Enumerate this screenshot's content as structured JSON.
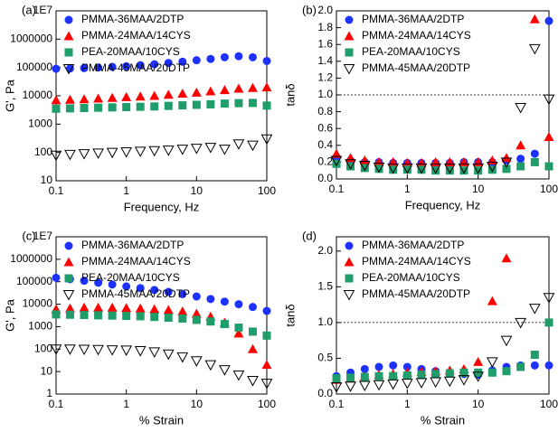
{
  "chart_data": [
    {
      "type": "scatter",
      "label": "(a)",
      "x_label": "Frequency, Hz",
      "y_label": "G', Pa",
      "xscale": "log",
      "yscale": "log",
      "xlim": [
        0.1,
        100
      ],
      "xticks": [
        0.1,
        1,
        10,
        100
      ],
      "ylim": [
        10,
        10000000
      ],
      "yticks": [
        10,
        100,
        1000,
        10000,
        100000,
        1000000,
        {
          "value": 10000000,
          "label": "1E7"
        }
      ],
      "legend": "upper left",
      "x": [
        0.1,
        0.158,
        0.251,
        0.398,
        0.631,
        1,
        1.585,
        2.512,
        3.981,
        6.31,
        10,
        15.85,
        25.12,
        39.81,
        63.1,
        100
      ],
      "series": [
        {
          "name": "PMMA-36MAA/2DTP",
          "color": "#1e32ff",
          "marker": "circle",
          "values": [
            90000,
            92000,
            95000,
            100000,
            105000,
            110000,
            120000,
            130000,
            145000,
            160000,
            180000,
            200000,
            230000,
            250000,
            230000,
            170000
          ]
        },
        {
          "name": "PMMA-24MAA/14CYS",
          "color": "#ff0000",
          "marker": "triangle-up",
          "values": [
            7000,
            7300,
            7600,
            8000,
            8500,
            9000,
            9500,
            10000,
            11000,
            12000,
            13000,
            14500,
            16000,
            18000,
            19000,
            20000
          ]
        },
        {
          "name": "PEA-20MAA/10CYS",
          "color": "#1f9d6a",
          "marker": "square",
          "values": [
            3500,
            3600,
            3700,
            3800,
            3900,
            4000,
            4100,
            4200,
            4400,
            4600,
            4800,
            5000,
            5300,
            5500,
            5600,
            4500
          ]
        },
        {
          "name": "PMMA-45MAA/20DTP",
          "color": "#000000",
          "marker": "open-triangle-down",
          "values": [
            80,
            85,
            90,
            95,
            100,
            105,
            110,
            115,
            120,
            130,
            140,
            150,
            130,
            200,
            180,
            300
          ]
        }
      ]
    },
    {
      "type": "scatter",
      "label": "(b)",
      "x_label": "Frequency, Hz",
      "y_label": "tanδ",
      "xscale": "log",
      "yscale": "linear",
      "xlim": [
        0.1,
        100
      ],
      "xticks": [
        0.1,
        1,
        10,
        100
      ],
      "ylim": [
        0,
        2
      ],
      "yticks": [
        {
          "value": 0,
          "label": "0.0"
        },
        0.2,
        0.4,
        0.6,
        0.8,
        {
          "value": 1,
          "label": "1.0"
        },
        1.2,
        1.4,
        1.6,
        1.8,
        {
          "value": 2,
          "label": "2.0"
        }
      ],
      "reference_line": 1,
      "legend": "upper left",
      "x": [
        0.1,
        0.158,
        0.251,
        0.398,
        0.631,
        1,
        1.585,
        2.512,
        3.981,
        6.31,
        10,
        15.85,
        25.12,
        39.81,
        63.1,
        100
      ],
      "series": [
        {
          "name": "PMMA-36MAA/2DTP",
          "color": "#1e32ff",
          "marker": "circle",
          "values": [
            0.25,
            0.22,
            0.2,
            0.2,
            0.19,
            0.19,
            0.19,
            0.19,
            0.19,
            0.2,
            0.2,
            0.2,
            0.22,
            0.24,
            0.3,
            1.88
          ]
        },
        {
          "name": "PMMA-24MAA/14CYS",
          "color": "#ff0000",
          "marker": "triangle-up",
          "values": [
            0.3,
            0.25,
            0.22,
            0.2,
            0.2,
            0.19,
            0.19,
            0.2,
            0.2,
            0.2,
            0.2,
            0.22,
            0.25,
            0.4,
            1.9,
            0.5
          ]
        },
        {
          "name": "PEA-20MAA/10CYS",
          "color": "#1f9d6a",
          "marker": "square",
          "values": [
            0.18,
            0.15,
            0.13,
            0.12,
            0.11,
            0.11,
            0.11,
            0.1,
            0.1,
            0.1,
            0.1,
            0.11,
            0.12,
            0.15,
            0.2,
            0.15
          ]
        },
        {
          "name": "PMMA-45MAA/20DTP",
          "color": "#000000",
          "marker": "open-triangle-down",
          "values": [
            0.22,
            0.18,
            0.16,
            0.14,
            0.13,
            0.13,
            0.13,
            0.13,
            0.13,
            0.13,
            0.13,
            0.15,
            0.2,
            0.85,
            1.55,
            0.95
          ]
        }
      ]
    },
    {
      "type": "scatter",
      "label": "(c)",
      "x_label": "% Strain",
      "y_label": "G', Pa",
      "xscale": "log",
      "yscale": "log",
      "xlim": [
        0.1,
        100
      ],
      "xticks": [
        0.1,
        1,
        10,
        100
      ],
      "ylim": [
        1,
        10000000
      ],
      "yticks": [
        1,
        10,
        100,
        1000,
        10000,
        100000,
        1000000,
        {
          "value": 10000000,
          "label": "1E7"
        }
      ],
      "legend": "upper left",
      "x": [
        0.1,
        0.158,
        0.251,
        0.398,
        0.631,
        1,
        1.585,
        2.512,
        3.981,
        6.31,
        10,
        15.85,
        25.12,
        39.81,
        63.1,
        100
      ],
      "series": [
        {
          "name": "PMMA-36MAA/2DTP",
          "color": "#1e32ff",
          "marker": "circle",
          "values": [
            150000,
            130000,
            110000,
            90000,
            75000,
            62000,
            52000,
            43000,
            35000,
            28000,
            22000,
            17000,
            13000,
            10000,
            7500,
            5000
          ]
        },
        {
          "name": "PMMA-24MAA/14CYS",
          "color": "#ff0000",
          "marker": "triangle-up",
          "values": [
            6000,
            6500,
            7000,
            7000,
            7000,
            6800,
            6500,
            6000,
            5500,
            4800,
            3800,
            2800,
            1500,
            500,
            100,
            20
          ]
        },
        {
          "name": "PEA-20MAA/10CYS",
          "color": "#1f9d6a",
          "marker": "square",
          "values": [
            3500,
            3400,
            3300,
            3200,
            3100,
            3000,
            2900,
            2700,
            2500,
            2300,
            2000,
            1700,
            1300,
            900,
            600,
            400
          ]
        },
        {
          "name": "PMMA-45MAA/20DTP",
          "color": "#000000",
          "marker": "open-triangle-down",
          "values": [
            100,
            100,
            98,
            96,
            93,
            90,
            85,
            75,
            60,
            45,
            30,
            20,
            12,
            7,
            4,
            3
          ]
        }
      ]
    },
    {
      "type": "scatter",
      "label": "(d)",
      "x_label": "% Strain",
      "y_label": "tanδ",
      "xscale": "log",
      "yscale": "linear",
      "xlim": [
        0.1,
        100
      ],
      "xticks": [
        0.1,
        1,
        10,
        100
      ],
      "ylim": [
        0,
        2.2
      ],
      "yticks": [
        {
          "value": 0,
          "label": "0.0"
        },
        0.5,
        {
          "value": 1,
          "label": "1.0"
        },
        1.5,
        {
          "value": 2,
          "label": "2.0"
        }
      ],
      "reference_line": 1,
      "legend": "upper left",
      "x": [
        0.1,
        0.158,
        0.251,
        0.398,
        0.631,
        1,
        1.585,
        2.512,
        3.981,
        6.31,
        10,
        15.85,
        25.12,
        39.81,
        63.1,
        100
      ],
      "series": [
        {
          "name": "PMMA-36MAA/2DTP",
          "color": "#1e32ff",
          "marker": "circle",
          "values": [
            0.25,
            0.3,
            0.35,
            0.38,
            0.4,
            0.38,
            0.35,
            0.32,
            0.3,
            0.28,
            0.27,
            0.33,
            0.38,
            0.4,
            0.4,
            0.4
          ]
        },
        {
          "name": "PMMA-24MAA/14CYS",
          "color": "#ff0000",
          "marker": "triangle-up",
          "values": [
            0.2,
            0.22,
            0.25,
            0.27,
            0.28,
            0.3,
            0.31,
            0.32,
            0.33,
            0.35,
            0.45,
            1.3,
            1.9,
            null,
            null,
            null
          ]
        },
        {
          "name": "PEA-20MAA/10CYS",
          "color": "#1f9d6a",
          "marker": "square",
          "values": [
            0.22,
            0.23,
            0.24,
            0.25,
            0.25,
            0.26,
            0.27,
            0.28,
            0.29,
            0.3,
            0.3,
            0.3,
            0.32,
            0.38,
            0.55,
            1.0
          ]
        },
        {
          "name": "PMMA-45MAA/20DTP",
          "color": "#000000",
          "marker": "open-triangle-down",
          "values": [
            0.1,
            0.11,
            0.12,
            0.13,
            0.14,
            0.15,
            0.16,
            0.17,
            0.18,
            0.2,
            0.25,
            0.45,
            0.75,
            1.0,
            1.2,
            1.35
          ]
        }
      ]
    }
  ]
}
